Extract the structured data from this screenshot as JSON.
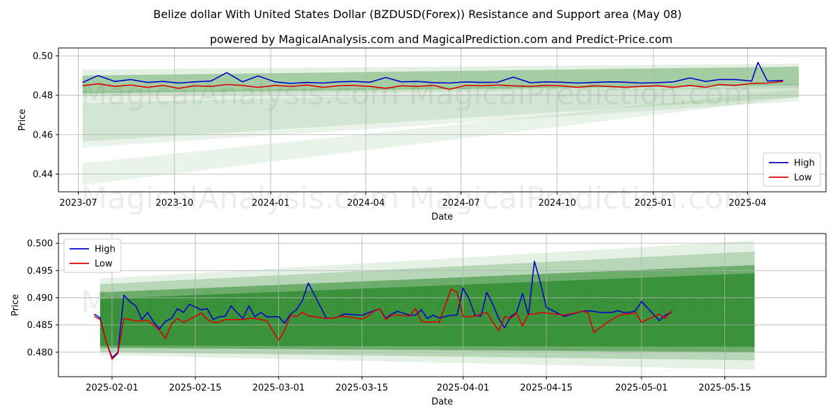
{
  "header": {
    "title": "Belize dollar With United States Dollar (BZDUSD(Forex)) Resistance and Support area (May 08)",
    "subtitle": "powered by MagicalAnalysis.com and MagicalPrediction.com and Predict-Price.com"
  },
  "watermarks": [
    "MagicalAnalysis.com",
    "MagicalPrediction.com"
  ],
  "colors": {
    "high": "#0000cc",
    "low": "#dd0000",
    "band": "#2e8b2e",
    "grid": "#b0b0b0"
  },
  "chart_data": [
    {
      "type": "line",
      "xlabel": "Date",
      "ylabel": "Price",
      "xlim": [
        "2023-06-12",
        "2025-06-15"
      ],
      "ylim": [
        0.431,
        0.504
      ],
      "grid": true,
      "legend": "bottom-right",
      "x_ticks": [
        "2023-07",
        "2023-10",
        "2024-01",
        "2024-04",
        "2024-07",
        "2024-10",
        "2025-01",
        "2025-04"
      ],
      "x_tick_dates": [
        "2023-07-01",
        "2023-10-01",
        "2024-01-01",
        "2024-04-01",
        "2024-07-01",
        "2024-10-01",
        "2025-01-01",
        "2025-04-01"
      ],
      "y_ticks": [
        "0.44",
        "0.46",
        "0.48",
        "0.50"
      ],
      "y_tick_values": [
        0.44,
        0.46,
        0.48,
        0.5
      ],
      "series": [
        {
          "name": "High",
          "color": "#0000cc",
          "x": [
            "2023-07-05",
            "2023-07-20",
            "2023-08-05",
            "2023-08-20",
            "2023-09-05",
            "2023-09-20",
            "2023-10-05",
            "2023-10-20",
            "2023-11-05",
            "2023-11-20",
            "2023-12-05",
            "2023-12-20",
            "2024-01-05",
            "2024-01-20",
            "2024-02-05",
            "2024-02-20",
            "2024-03-05",
            "2024-03-20",
            "2024-04-05",
            "2024-04-20",
            "2024-05-05",
            "2024-05-20",
            "2024-06-05",
            "2024-06-20",
            "2024-07-05",
            "2024-07-20",
            "2024-08-05",
            "2024-08-20",
            "2024-09-05",
            "2024-09-20",
            "2024-10-05",
            "2024-10-20",
            "2024-11-05",
            "2024-11-20",
            "2024-12-05",
            "2024-12-20",
            "2025-01-05",
            "2025-01-20",
            "2025-02-05",
            "2025-02-20",
            "2025-03-05",
            "2025-03-20",
            "2025-04-05",
            "2025-04-11",
            "2025-04-20",
            "2025-05-05"
          ],
          "values": [
            0.4865,
            0.49,
            0.487,
            0.488,
            0.4865,
            0.487,
            0.4862,
            0.4868,
            0.4872,
            0.4915,
            0.4868,
            0.4898,
            0.4868,
            0.486,
            0.4865,
            0.4862,
            0.4868,
            0.487,
            0.4866,
            0.489,
            0.4868,
            0.487,
            0.4864,
            0.4862,
            0.4868,
            0.4865,
            0.4866,
            0.4892,
            0.4864,
            0.4868,
            0.4866,
            0.4862,
            0.4865,
            0.4868,
            0.4866,
            0.4862,
            0.4864,
            0.4868,
            0.4888,
            0.487,
            0.488,
            0.488,
            0.4872,
            0.4967,
            0.4872,
            0.4875
          ]
        },
        {
          "name": "Low",
          "color": "#dd0000",
          "x": [
            "2023-07-05",
            "2023-07-20",
            "2023-08-05",
            "2023-08-20",
            "2023-09-05",
            "2023-09-20",
            "2023-10-05",
            "2023-10-20",
            "2023-11-05",
            "2023-11-20",
            "2023-12-05",
            "2023-12-20",
            "2024-01-05",
            "2024-01-20",
            "2024-02-05",
            "2024-02-20",
            "2024-03-05",
            "2024-03-20",
            "2024-04-05",
            "2024-04-20",
            "2024-05-05",
            "2024-05-20",
            "2024-06-05",
            "2024-06-20",
            "2024-07-05",
            "2024-07-20",
            "2024-08-05",
            "2024-08-20",
            "2024-09-05",
            "2024-09-20",
            "2024-10-05",
            "2024-10-20",
            "2024-11-05",
            "2024-11-20",
            "2024-12-05",
            "2024-12-20",
            "2025-01-05",
            "2025-01-20",
            "2025-02-05",
            "2025-02-20",
            "2025-03-05",
            "2025-03-20",
            "2025-04-05",
            "2025-04-20",
            "2025-05-05"
          ],
          "values": [
            0.4848,
            0.4858,
            0.4845,
            0.4852,
            0.484,
            0.485,
            0.4835,
            0.4848,
            0.4845,
            0.4855,
            0.485,
            0.484,
            0.485,
            0.4845,
            0.4852,
            0.484,
            0.4848,
            0.485,
            0.4845,
            0.4835,
            0.4848,
            0.4845,
            0.485,
            0.483,
            0.485,
            0.4848,
            0.4852,
            0.4848,
            0.4845,
            0.485,
            0.4848,
            0.484,
            0.4848,
            0.4845,
            0.484,
            0.4845,
            0.4848,
            0.484,
            0.485,
            0.484,
            0.4855,
            0.485,
            0.486,
            0.4862,
            0.487
          ]
        }
      ],
      "bands": [
        {
          "x": [
            "2023-07-05",
            "2025-05-20"
          ],
          "lower": [
            0.4795,
            0.4835
          ],
          "upper": [
            0.493,
            0.496
          ],
          "opacity": 0.13
        },
        {
          "x": [
            "2023-07-05",
            "2025-05-20"
          ],
          "lower": [
            0.481,
            0.485
          ],
          "upper": [
            0.49,
            0.4945
          ],
          "opacity": 0.35
        },
        {
          "x": [
            "2023-07-05",
            "2025-05-20"
          ],
          "lower": [
            0.4565,
            0.479
          ],
          "upper": [
            0.482,
            0.486
          ],
          "opacity": 0.12
        },
        {
          "x": [
            "2023-07-05",
            "2025-05-20"
          ],
          "lower": [
            0.4535,
            0.477
          ],
          "upper": [
            0.476,
            0.485
          ],
          "opacity": 0.1
        },
        {
          "x": [
            "2023-07-05",
            "2025-05-20"
          ],
          "lower": [
            0.4345,
            0.479
          ],
          "upper": [
            0.4455,
            0.483
          ],
          "opacity": 0.1
        }
      ]
    },
    {
      "type": "line",
      "xlabel": "Date",
      "ylabel": "Price",
      "xlim": [
        "2025-01-23",
        "2025-06-01"
      ],
      "ylim": [
        0.4755,
        0.5018
      ],
      "grid": true,
      "legend": "top-left",
      "x_ticks": [
        "2025-02-01",
        "2025-02-15",
        "2025-03-01",
        "2025-03-15",
        "2025-04-01",
        "2025-04-15",
        "2025-05-01",
        "2025-05-15"
      ],
      "x_tick_dates": [
        "2025-02-01",
        "2025-02-15",
        "2025-03-01",
        "2025-03-15",
        "2025-04-01",
        "2025-04-15",
        "2025-05-01",
        "2025-05-15"
      ],
      "y_ticks": [
        "0.480",
        "0.485",
        "0.490",
        "0.495",
        "0.500"
      ],
      "y_tick_values": [
        0.48,
        0.485,
        0.49,
        0.495,
        0.5
      ],
      "series": [
        {
          "name": "High",
          "color": "#0000cc",
          "x": [
            "2025-01-29",
            "2025-01-30",
            "2025-01-31",
            "2025-02-01",
            "2025-02-02",
            "2025-02-03",
            "2025-02-04",
            "2025-02-05",
            "2025-02-06",
            "2025-02-07",
            "2025-02-08",
            "2025-02-09",
            "2025-02-10",
            "2025-02-11",
            "2025-02-12",
            "2025-02-13",
            "2025-02-14",
            "2025-02-16",
            "2025-02-17",
            "2025-02-18",
            "2025-02-19",
            "2025-02-20",
            "2025-02-21",
            "2025-02-22",
            "2025-02-23",
            "2025-02-24",
            "2025-02-25",
            "2025-02-26",
            "2025-02-27",
            "2025-03-01",
            "2025-03-02",
            "2025-03-03",
            "2025-03-04",
            "2025-03-05",
            "2025-03-06",
            "2025-03-09",
            "2025-03-10",
            "2025-03-11",
            "2025-03-12",
            "2025-03-15",
            "2025-03-16",
            "2025-03-17",
            "2025-03-18",
            "2025-03-19",
            "2025-03-20",
            "2025-03-21",
            "2025-03-23",
            "2025-03-24",
            "2025-03-25",
            "2025-03-26",
            "2025-03-27",
            "2025-03-28",
            "2025-03-30",
            "2025-03-31",
            "2025-04-01",
            "2025-04-02",
            "2025-04-03",
            "2025-04-04",
            "2025-04-05",
            "2025-04-06",
            "2025-04-07",
            "2025-04-08",
            "2025-04-09",
            "2025-04-10",
            "2025-04-11",
            "2025-04-12",
            "2025-04-13",
            "2025-04-14",
            "2025-04-15",
            "2025-04-18",
            "2025-04-21",
            "2025-04-22",
            "2025-04-23",
            "2025-04-24",
            "2025-04-26",
            "2025-04-27",
            "2025-04-28",
            "2025-04-29",
            "2025-04-30",
            "2025-05-01",
            "2025-05-04",
            "2025-05-05",
            "2025-05-06"
          ],
          "values": [
            0.487,
            0.4863,
            0.482,
            0.479,
            0.48,
            0.4905,
            0.4893,
            0.4885,
            0.486,
            0.4873,
            0.4855,
            0.4843,
            0.4857,
            0.4862,
            0.488,
            0.4873,
            0.4888,
            0.4878,
            0.488,
            0.486,
            0.4865,
            0.4866,
            0.4885,
            0.4873,
            0.4862,
            0.4885,
            0.4865,
            0.4873,
            0.4865,
            0.4865,
            0.4853,
            0.487,
            0.4878,
            0.4895,
            0.4927,
            0.4863,
            0.4862,
            0.4865,
            0.487,
            0.4868,
            0.4872,
            0.4876,
            0.488,
            0.4862,
            0.487,
            0.4875,
            0.4868,
            0.4868,
            0.4878,
            0.4862,
            0.4868,
            0.4863,
            0.4868,
            0.4868,
            0.4918,
            0.4898,
            0.4868,
            0.4866,
            0.491,
            0.4888,
            0.4862,
            0.4845,
            0.4865,
            0.4873,
            0.4908,
            0.4868,
            0.4967,
            0.4928,
            0.4882,
            0.4866,
            0.4875,
            0.4876,
            0.4875,
            0.4873,
            0.4873,
            0.4876,
            0.4873,
            0.4873,
            0.4876,
            0.4893,
            0.4858,
            0.4868,
            0.4873
          ]
        },
        {
          "name": "Low",
          "color": "#dd0000",
          "x": [
            "2025-01-29",
            "2025-01-30",
            "2025-01-31",
            "2025-02-01",
            "2025-02-02",
            "2025-02-03",
            "2025-02-04",
            "2025-02-05",
            "2025-02-06",
            "2025-02-07",
            "2025-02-08",
            "2025-02-09",
            "2025-02-10",
            "2025-02-11",
            "2025-02-12",
            "2025-02-13",
            "2025-02-14",
            "2025-02-16",
            "2025-02-17",
            "2025-02-18",
            "2025-02-19",
            "2025-02-20",
            "2025-02-21",
            "2025-02-22",
            "2025-02-23",
            "2025-02-24",
            "2025-02-25",
            "2025-02-26",
            "2025-02-27",
            "2025-03-01",
            "2025-03-02",
            "2025-03-03",
            "2025-03-04",
            "2025-03-05",
            "2025-03-06",
            "2025-03-09",
            "2025-03-10",
            "2025-03-11",
            "2025-03-12",
            "2025-03-15",
            "2025-03-16",
            "2025-03-17",
            "2025-03-18",
            "2025-03-19",
            "2025-03-20",
            "2025-03-21",
            "2025-03-23",
            "2025-03-24",
            "2025-03-25",
            "2025-03-26",
            "2025-03-27",
            "2025-03-28",
            "2025-03-30",
            "2025-03-31",
            "2025-04-01",
            "2025-04-02",
            "2025-04-03",
            "2025-04-04",
            "2025-04-05",
            "2025-04-06",
            "2025-04-07",
            "2025-04-08",
            "2025-04-09",
            "2025-04-10",
            "2025-04-11",
            "2025-04-12",
            "2025-04-13",
            "2025-04-14",
            "2025-04-15",
            "2025-04-18",
            "2025-04-21",
            "2025-04-22",
            "2025-04-23",
            "2025-04-24",
            "2025-04-26",
            "2025-04-27",
            "2025-04-28",
            "2025-04-29",
            "2025-04-30",
            "2025-05-01",
            "2025-05-04",
            "2025-05-05",
            "2025-05-06"
          ],
          "values": [
            0.4866,
            0.486,
            0.482,
            0.4787,
            0.4798,
            0.4862,
            0.486,
            0.4857,
            0.4858,
            0.4858,
            0.485,
            0.484,
            0.4825,
            0.4852,
            0.4862,
            0.4855,
            0.486,
            0.4872,
            0.486,
            0.4855,
            0.4855,
            0.486,
            0.486,
            0.486,
            0.486,
            0.4862,
            0.4862,
            0.486,
            0.4858,
            0.4822,
            0.484,
            0.4868,
            0.4865,
            0.4873,
            0.4867,
            0.4862,
            0.4862,
            0.4865,
            0.4866,
            0.4861,
            0.4866,
            0.4875,
            0.488,
            0.486,
            0.4868,
            0.4868,
            0.4866,
            0.488,
            0.4857,
            0.4855,
            0.4856,
            0.4855,
            0.4916,
            0.491,
            0.4866,
            0.4865,
            0.4866,
            0.487,
            0.4873,
            0.4855,
            0.484,
            0.4865,
            0.4862,
            0.4872,
            0.4848,
            0.487,
            0.487,
            0.4873,
            0.4872,
            0.4868,
            0.4875,
            0.4873,
            0.4836,
            0.4845,
            0.486,
            0.4866,
            0.487,
            0.487,
            0.4873,
            0.4855,
            0.487,
            0.4862,
            0.4876
          ]
        }
      ],
      "bands": [
        {
          "x": [
            "2025-01-30",
            "2025-05-20"
          ],
          "lower": [
            0.4795,
            0.4768
          ],
          "upper": [
            0.4935,
            0.5005
          ],
          "opacity": 0.12
        },
        {
          "x": [
            "2025-01-30",
            "2025-05-20"
          ],
          "lower": [
            0.48,
            0.4785
          ],
          "upper": [
            0.4925,
            0.4985
          ],
          "opacity": 0.25
        },
        {
          "x": [
            "2025-01-30",
            "2025-05-20"
          ],
          "lower": [
            0.4808,
            0.48
          ],
          "upper": [
            0.491,
            0.496
          ],
          "opacity": 0.55
        },
        {
          "x": [
            "2025-01-30",
            "2025-05-20"
          ],
          "lower": [
            0.4812,
            0.481
          ],
          "upper": [
            0.4898,
            0.4945
          ],
          "opacity": 0.8
        }
      ]
    }
  ]
}
